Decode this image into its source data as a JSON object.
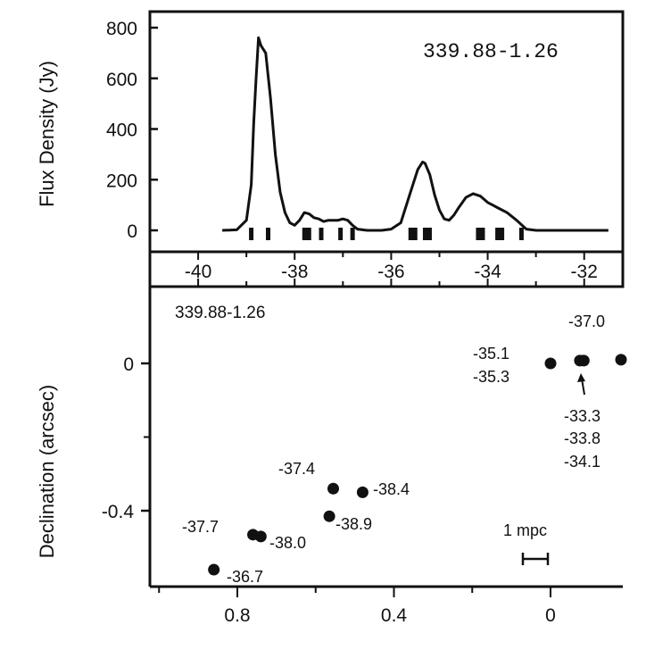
{
  "chart_data": [
    {
      "type": "line",
      "title": "339.88-1.26",
      "ylabel": "Flux Density (Jy)",
      "xlabel": "",
      "xlim": [
        -41,
        -31.2
      ],
      "ylim": [
        -20,
        830
      ],
      "y_ticks": [
        "0",
        "200",
        "400",
        "600",
        "800"
      ],
      "x_ticks": [
        "-40",
        "-38",
        "-36",
        "-34",
        "-32"
      ],
      "series": [
        {
          "x": [
            -39.5,
            -39.2,
            -39.0,
            -38.9,
            -38.85,
            -38.8,
            -38.75,
            -38.7,
            -38.6,
            -38.5,
            -38.4,
            -38.3,
            -38.2,
            -38.1,
            -38.0,
            -37.9,
            -37.8,
            -37.7,
            -37.6,
            -37.5,
            -37.4,
            -37.3,
            -37.1,
            -37.0,
            -36.9,
            -36.8,
            -36.7,
            -36.5,
            -36.2,
            -36.0,
            -35.8,
            -35.6,
            -35.45,
            -35.35,
            -35.3,
            -35.2,
            -35.1,
            -35.0,
            -34.9,
            -34.8,
            -34.7,
            -34.6,
            -34.45,
            -34.3,
            -34.15,
            -34.0,
            -33.9,
            -33.8,
            -33.6,
            -33.4,
            -33.2,
            -33.0,
            -32.5,
            -31.5
          ],
          "y": [
            0,
            2,
            40,
            180,
            420,
            600,
            760,
            730,
            700,
            520,
            300,
            150,
            70,
            30,
            20,
            40,
            70,
            65,
            50,
            45,
            35,
            40,
            40,
            45,
            40,
            20,
            5,
            0,
            0,
            5,
            30,
            150,
            240,
            270,
            265,
            220,
            140,
            80,
            45,
            40,
            60,
            90,
            130,
            145,
            135,
            110,
            100,
            90,
            70,
            40,
            5,
            0,
            0,
            0
          ]
        }
      ],
      "feature_markers_x": [
        -38.9,
        -38.55,
        -37.75,
        -37.45,
        -37.05,
        -36.8,
        -35.55,
        -35.25,
        -34.15,
        -33.75,
        -33.3
      ]
    },
    {
      "type": "scatter",
      "title": "339.88-1.26",
      "ylabel": "Declination (arcsec)",
      "xlabel": "",
      "xlim": [
        1.0,
        -0.2
      ],
      "ylim": [
        -0.575,
        0.155
      ],
      "x_ticks": [
        "0.8",
        "0.4",
        "0"
      ],
      "y_ticks": [
        "0",
        "-0.4"
      ],
      "points": [
        {
          "x": 0.0,
          "y": 0.0
        },
        {
          "x": -0.075,
          "y": 0.0075
        },
        {
          "x": -0.085,
          "y": 0.0075
        },
        {
          "x": -0.185,
          "y": 0.01
        },
        {
          "x": 0.555,
          "y": -0.34
        },
        {
          "x": 0.48,
          "y": -0.35
        },
        {
          "x": 0.565,
          "y": -0.415
        },
        {
          "x": 0.76,
          "y": -0.465
        },
        {
          "x": 0.74,
          "y": -0.47
        },
        {
          "x": 0.86,
          "y": -0.56
        }
      ],
      "annotations": [
        "-37.0",
        "-35.1",
        "-35.3",
        "-33.3",
        "-33.8",
        "-34.1",
        "-37.4",
        "-38.4",
        "-38.9",
        "-37.7",
        "-38.0",
        "-36.7"
      ],
      "scale_bar_label": "1 mpc"
    }
  ]
}
